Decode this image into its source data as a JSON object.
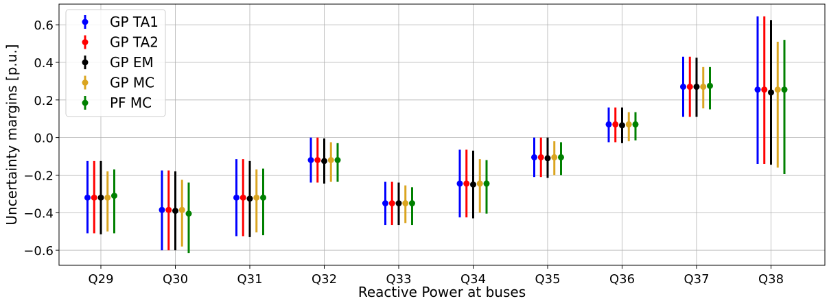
{
  "chart_data": {
    "type": "errorbar",
    "xlabel": "Reactive Power at buses",
    "ylabel": "Uncertainty margins [p.u.]",
    "categories": [
      "Q29",
      "Q30",
      "Q31",
      "Q32",
      "Q33",
      "Q34",
      "Q35",
      "Q36",
      "Q37",
      "Q38"
    ],
    "ylim": [
      -0.68,
      0.71
    ],
    "yticks": [
      -0.6,
      -0.4,
      -0.2,
      0.0,
      0.2,
      0.4,
      0.6
    ],
    "ytick_labels": [
      "−0.6",
      "−0.4",
      "−0.2",
      "0.0",
      "0.2",
      "0.4",
      "0.6"
    ],
    "grid": true,
    "legend_position": "top-left",
    "series": [
      {
        "name": "GP TA1",
        "color": "#0000ff",
        "values": [
          -0.32,
          -0.385,
          -0.32,
          -0.12,
          -0.35,
          -0.245,
          -0.105,
          0.07,
          0.27,
          0.255
        ],
        "lower": [
          -0.51,
          -0.6,
          -0.525,
          -0.24,
          -0.465,
          -0.425,
          -0.21,
          -0.025,
          0.11,
          -0.14
        ],
        "upper": [
          -0.125,
          -0.175,
          -0.115,
          0.0,
          -0.235,
          -0.065,
          0.0,
          0.16,
          0.43,
          0.645
        ]
      },
      {
        "name": "GP TA2",
        "color": "#ff0000",
        "values": [
          -0.32,
          -0.385,
          -0.32,
          -0.12,
          -0.35,
          -0.245,
          -0.105,
          0.07,
          0.27,
          0.255
        ],
        "lower": [
          -0.51,
          -0.6,
          -0.525,
          -0.24,
          -0.465,
          -0.425,
          -0.21,
          -0.025,
          0.11,
          -0.14
        ],
        "upper": [
          -0.125,
          -0.175,
          -0.115,
          0.0,
          -0.235,
          -0.065,
          0.0,
          0.16,
          0.43,
          0.645
        ]
      },
      {
        "name": "GP EM",
        "color": "#000000",
        "values": [
          -0.32,
          -0.39,
          -0.325,
          -0.125,
          -0.35,
          -0.25,
          -0.11,
          0.065,
          0.27,
          0.24
        ],
        "lower": [
          -0.515,
          -0.6,
          -0.53,
          -0.245,
          -0.465,
          -0.43,
          -0.215,
          -0.03,
          0.11,
          -0.145
        ],
        "upper": [
          -0.125,
          -0.18,
          -0.125,
          -0.005,
          -0.24,
          -0.07,
          0.0,
          0.16,
          0.425,
          0.625
        ]
      },
      {
        "name": "GP MC",
        "color": "#daa520",
        "values": [
          -0.32,
          -0.385,
          -0.32,
          -0.12,
          -0.35,
          -0.245,
          -0.105,
          0.07,
          0.27,
          0.255
        ],
        "lower": [
          -0.5,
          -0.58,
          -0.505,
          -0.235,
          -0.455,
          -0.4,
          -0.2,
          -0.02,
          0.155,
          -0.16
        ],
        "upper": [
          -0.18,
          -0.225,
          -0.17,
          -0.025,
          -0.255,
          -0.115,
          -0.02,
          0.135,
          0.375,
          0.51
        ]
      },
      {
        "name": "PF MC",
        "color": "#008000",
        "values": [
          -0.31,
          -0.405,
          -0.32,
          -0.12,
          -0.35,
          -0.245,
          -0.105,
          0.07,
          0.275,
          0.255
        ],
        "lower": [
          -0.51,
          -0.615,
          -0.52,
          -0.235,
          -0.465,
          -0.405,
          -0.2,
          -0.015,
          0.15,
          -0.195
        ],
        "upper": [
          -0.17,
          -0.24,
          -0.165,
          -0.03,
          -0.265,
          -0.12,
          -0.025,
          0.135,
          0.375,
          0.52
        ]
      }
    ]
  }
}
